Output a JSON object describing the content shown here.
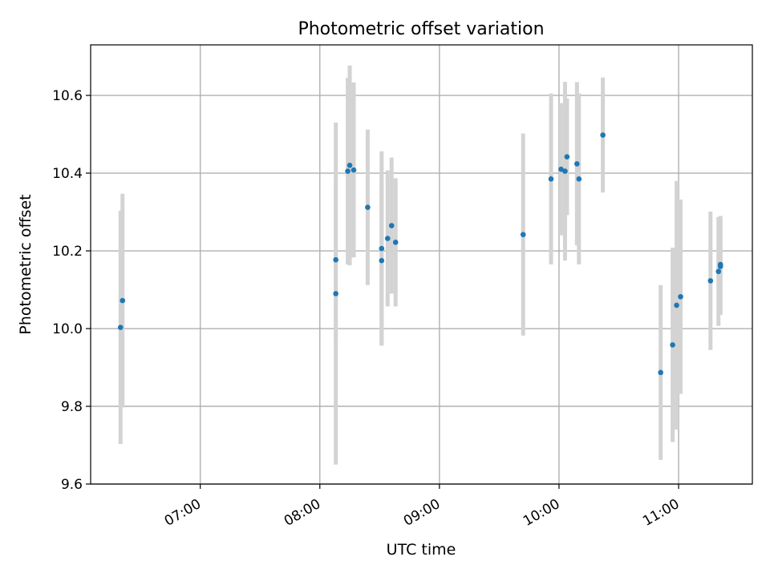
{
  "chart_data": {
    "type": "scatter",
    "title": "Photometric offset variation",
    "xlabel": "UTC time",
    "ylabel": "Photometric offset",
    "xlim": [
      "06:05",
      "11:37"
    ],
    "ylim": [
      9.6,
      10.73
    ],
    "x_ticks": [
      "07:00",
      "08:00",
      "09:00",
      "10:00",
      "11:00"
    ],
    "y_ticks": [
      9.6,
      9.8,
      10.0,
      10.2,
      10.4,
      10.6
    ],
    "grid": true,
    "marker_color": "#1f77b4",
    "errorbar_color": "#d3d3d3",
    "points": [
      {
        "x": "06:20",
        "y": 10.003,
        "err": 0.3
      },
      {
        "x": "06:21",
        "y": 10.072,
        "err": 0.275
      },
      {
        "x": "08:08",
        "y": 10.177,
        "err": 0.21
      },
      {
        "x": "08:08",
        "y": 10.09,
        "err": 0.44
      },
      {
        "x": "08:14",
        "y": 10.405,
        "err": 0.24
      },
      {
        "x": "08:15",
        "y": 10.42,
        "err": 0.257
      },
      {
        "x": "08:17",
        "y": 10.408,
        "err": 0.225
      },
      {
        "x": "08:24",
        "y": 10.312,
        "err": 0.2
      },
      {
        "x": "08:31",
        "y": 10.206,
        "err": 0.25
      },
      {
        "x": "08:31",
        "y": 10.175,
        "err": 0.215
      },
      {
        "x": "08:34",
        "y": 10.232,
        "err": 0.175
      },
      {
        "x": "08:36",
        "y": 10.265,
        "err": 0.175
      },
      {
        "x": "08:38",
        "y": 10.222,
        "err": 0.165
      },
      {
        "x": "09:42",
        "y": 10.242,
        "err": 0.26
      },
      {
        "x": "09:56",
        "y": 10.385,
        "err": 0.22
      },
      {
        "x": "10:01",
        "y": 10.41,
        "err": 0.17
      },
      {
        "x": "10:03",
        "y": 10.405,
        "err": 0.23
      },
      {
        "x": "10:04",
        "y": 10.442,
        "err": 0.15
      },
      {
        "x": "10:09",
        "y": 10.424,
        "err": 0.21
      },
      {
        "x": "10:10",
        "y": 10.385,
        "err": 0.22
      },
      {
        "x": "10:22",
        "y": 10.498,
        "err": 0.148
      },
      {
        "x": "10:51",
        "y": 9.887,
        "err": 0.225
      },
      {
        "x": "10:57",
        "y": 9.958,
        "err": 0.25
      },
      {
        "x": "10:59",
        "y": 10.06,
        "err": 0.32
      },
      {
        "x": "11:01",
        "y": 10.082,
        "err": 0.25
      },
      {
        "x": "11:16",
        "y": 10.123,
        "err": 0.178
      },
      {
        "x": "11:20",
        "y": 10.147,
        "err": 0.14
      },
      {
        "x": "11:21",
        "y": 10.165,
        "err": 0.125
      },
      {
        "x": "11:21",
        "y": 10.16,
        "err": 0.125
      }
    ]
  }
}
